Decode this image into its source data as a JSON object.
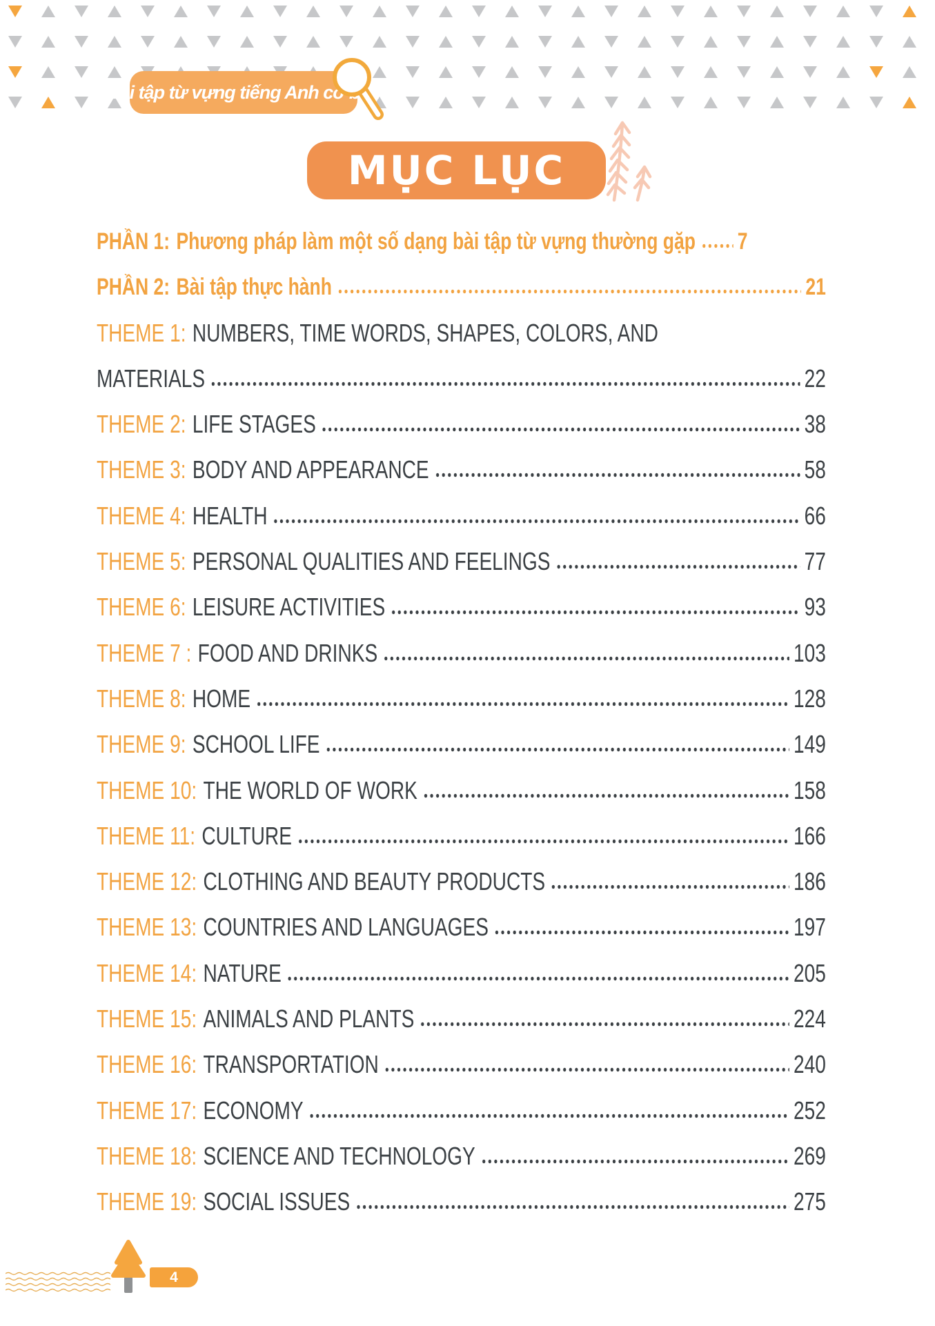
{
  "header": {
    "book_title": "Bài tập từ vựng tiếng Anh cơ bản"
  },
  "title": "MỤC LỤC",
  "toc": [
    {
      "type": "part",
      "label": "PHẦN 1:",
      "title": "Phương pháp làm một số dạng bài tập từ vựng thường gặp",
      "page": "7",
      "short_leader": true
    },
    {
      "type": "part",
      "label": "PHẦN 2:",
      "title": "Bài tập thực hành",
      "page": "21"
    },
    {
      "type": "theme",
      "label": "THEME 1:",
      "title": "NUMBERS, TIME WORDS, SHAPES, COLORS, AND",
      "page": null
    },
    {
      "type": "theme",
      "label": "",
      "title": "MATERIALS",
      "page": "22"
    },
    {
      "type": "theme",
      "label": "THEME 2:",
      "title": "LIFE STAGES",
      "page": "38"
    },
    {
      "type": "theme",
      "label": "THEME 3:",
      "title": "BODY AND APPEARANCE",
      "page": "58"
    },
    {
      "type": "theme",
      "label": "THEME 4:",
      "title": "HEALTH",
      "page": "66"
    },
    {
      "type": "theme",
      "label": "THEME 5:",
      "title": "PERSONAL QUALITIES AND FEELINGS",
      "page": "77"
    },
    {
      "type": "theme",
      "label": "THEME 6:",
      "title": "LEISURE ACTIVITIES",
      "page": "93"
    },
    {
      "type": "theme",
      "label": "THEME 7 :",
      "title": "FOOD AND DRINKS",
      "page": "103"
    },
    {
      "type": "theme",
      "label": "THEME 8:",
      "title": "HOME",
      "page": "128"
    },
    {
      "type": "theme",
      "label": "THEME 9:",
      "title": "SCHOOL LIFE",
      "page": "149"
    },
    {
      "type": "theme",
      "label": "THEME 10:",
      "title": "THE WORLD OF WORK",
      "page": "158"
    },
    {
      "type": "theme",
      "label": "THEME 11:",
      "title": "CULTURE",
      "page": "166"
    },
    {
      "type": "theme",
      "label": "THEME 12:",
      "title": "CLOTHING AND BEAUTY PRODUCTS",
      "page": "186"
    },
    {
      "type": "theme",
      "label": "THEME 13:",
      "title": "COUNTRIES AND LANGUAGES",
      "page": "197"
    },
    {
      "type": "theme",
      "label": "THEME 14:",
      "title": "NATURE",
      "page": "205"
    },
    {
      "type": "theme",
      "label": "THEME 15:",
      "title": "ANIMALS AND PLANTS",
      "page": "224"
    },
    {
      "type": "theme",
      "label": "THEME 16:",
      "title": "TRANSPORTATION",
      "page": "240"
    },
    {
      "type": "theme",
      "label": "THEME 17:",
      "title": "ECONOMY",
      "page": "252"
    },
    {
      "type": "theme",
      "label": "THEME 18:",
      "title": "SCIENCE AND TECHNOLOGY",
      "page": "269"
    },
    {
      "type": "theme",
      "label": "THEME 19:",
      "title": "SOCIAL ISSUES",
      "page": "275"
    }
  ],
  "footer": {
    "page_number": "4"
  },
  "icons": [
    "magnifier-icon",
    "leaf-branch-icon",
    "pine-tree-icon",
    "wave-lines-decoration"
  ],
  "colors": {
    "accent_text_orange": "#f2a341",
    "title_badge_orange": "#f0924f",
    "header_badge_orange": "#f5aa5e",
    "triangle_gray": "#c6c7c9",
    "triangle_orange": "#f5a63f",
    "body_text_dark": "#3b4044",
    "leaf_salmon": "#f7c9b4",
    "trunk_gray": "#8f9193",
    "wave_orange": "#e8ae57",
    "footer_badge_orange": "#f5a33c",
    "background": "#ffffff"
  }
}
